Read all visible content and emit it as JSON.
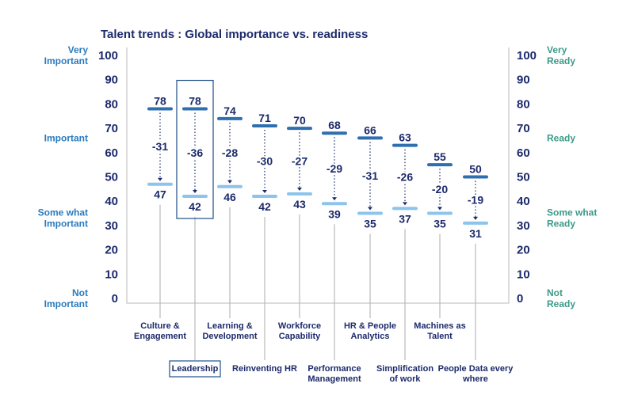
{
  "chart_data": {
    "type": "dumbbell",
    "title": "Talent trends : Global importance vs. readiness",
    "ylim": [
      0,
      100
    ],
    "yticks": [
      0,
      10,
      20,
      30,
      40,
      50,
      60,
      70,
      80,
      90,
      100
    ],
    "left_axis_labels": [
      {
        "text": [
          "Very",
          "Important"
        ],
        "at": 100
      },
      {
        "text": [
          "Important"
        ],
        "at": 66
      },
      {
        "text": [
          "Some what",
          "Important"
        ],
        "at": 33
      },
      {
        "text": [
          "Not",
          "Important"
        ],
        "at": 0
      }
    ],
    "right_axis_labels": [
      {
        "text": [
          "Very",
          "Ready"
        ],
        "at": 100
      },
      {
        "text": [
          "Ready"
        ],
        "at": 66
      },
      {
        "text": [
          "Some what",
          "Ready"
        ],
        "at": 33
      },
      {
        "text": [
          "Not",
          "Ready"
        ],
        "at": 0
      }
    ],
    "categories": [
      {
        "name": [
          "Culture &",
          "Engagement"
        ],
        "label_row": "upper",
        "importance": 78,
        "readiness": 47,
        "gap": -31,
        "highlighted": false
      },
      {
        "name": [
          "Leadership"
        ],
        "label_row": "lower",
        "importance": 78,
        "readiness": 42,
        "gap": -36,
        "highlighted": true
      },
      {
        "name": [
          "Learning &",
          "Development"
        ],
        "label_row": "upper",
        "importance": 74,
        "readiness": 46,
        "gap": -28,
        "highlighted": false
      },
      {
        "name": [
          "Reinventing HR"
        ],
        "label_row": "lower",
        "importance": 71,
        "readiness": 42,
        "gap": -30,
        "highlighted": false
      },
      {
        "name": [
          "Workforce",
          "Capability"
        ],
        "label_row": "upper",
        "importance": 70,
        "readiness": 43,
        "gap": -27,
        "highlighted": false
      },
      {
        "name": [
          "Performance",
          "Management"
        ],
        "label_row": "lower",
        "importance": 68,
        "readiness": 39,
        "gap": -29,
        "highlighted": false
      },
      {
        "name": [
          "HR & People",
          "Analytics"
        ],
        "label_row": "upper",
        "importance": 66,
        "readiness": 35,
        "gap": -31,
        "highlighted": false
      },
      {
        "name": [
          "Simplification",
          "of work"
        ],
        "label_row": "lower",
        "importance": 63,
        "readiness": 37,
        "gap": -26,
        "highlighted": false
      },
      {
        "name": [
          "Machines as",
          "Talent"
        ],
        "label_row": "upper",
        "importance": 55,
        "readiness": 35,
        "gap": -20,
        "highlighted": false
      },
      {
        "name": [
          "People Data every",
          "where"
        ],
        "label_row": "lower",
        "importance": 50,
        "readiness": 31,
        "gap": -19,
        "highlighted": false
      }
    ],
    "colors": {
      "importance": "#2f6fb0",
      "readiness": "#8cc4ec",
      "text": "#1c2a6b",
      "left_labels": "#2b7bbf",
      "right_labels": "#3d9a88",
      "frame": "#b9b9b9"
    },
    "grid": false
  }
}
